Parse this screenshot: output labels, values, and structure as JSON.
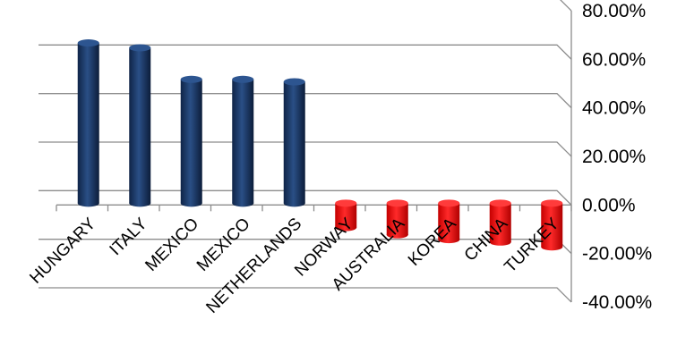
{
  "chart_data": {
    "type": "bar",
    "title": "",
    "xlabel": "",
    "ylabel": "",
    "categories": [
      "HUNGARY",
      "ITALY",
      "MEXICO",
      "MEXICO",
      "NETHERLANDS",
      "NORWAY",
      "AUSTRALIA",
      "KOREA",
      "CHINA",
      "TURKEY"
    ],
    "values": [
      66,
      64,
      51,
      51,
      50,
      -10,
      -13,
      -15,
      -16,
      -18
    ],
    "ylim": [
      -40,
      80
    ],
    "yticks": [
      "-40.00%",
      "-20.00%",
      "0.00%",
      "20.00%",
      "40.00%",
      "60.00%",
      "80.00%"
    ],
    "y_axis_position": "right",
    "grid": true,
    "legend": "none",
    "colors": {
      "positive": "#1c3a6b",
      "negative": "#e81010"
    }
  }
}
